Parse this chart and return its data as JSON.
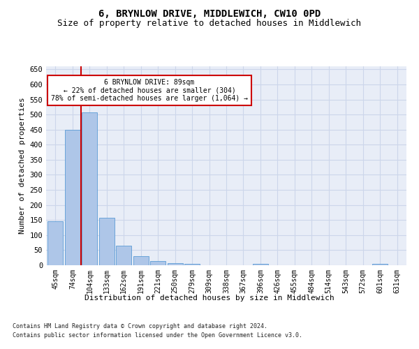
{
  "title": "6, BRYNLOW DRIVE, MIDDLEWICH, CW10 0PD",
  "subtitle": "Size of property relative to detached houses in Middlewich",
  "xlabel": "Distribution of detached houses by size in Middlewich",
  "ylabel": "Number of detached properties",
  "categories": [
    "45sqm",
    "74sqm",
    "104sqm",
    "133sqm",
    "162sqm",
    "191sqm",
    "221sqm",
    "250sqm",
    "279sqm",
    "309sqm",
    "338sqm",
    "367sqm",
    "396sqm",
    "426sqm",
    "455sqm",
    "484sqm",
    "514sqm",
    "543sqm",
    "572sqm",
    "601sqm",
    "631sqm"
  ],
  "values": [
    147,
    450,
    507,
    157,
    65,
    30,
    13,
    8,
    5,
    0,
    0,
    0,
    5,
    0,
    0,
    0,
    0,
    0,
    0,
    5,
    0
  ],
  "bar_color": "#aec6e8",
  "bar_edge_color": "#5b9bd5",
  "grid_color": "#ccd6ea",
  "background_color": "#e8edf7",
  "vline_color": "#cc0000",
  "vline_x_index": 1.5,
  "annotation_line1": "6 BRYNLOW DRIVE: 89sqm",
  "annotation_line2": "← 22% of detached houses are smaller (304)",
  "annotation_line3": "78% of semi-detached houses are larger (1,064) →",
  "annotation_box_facecolor": "#ffffff",
  "annotation_box_edgecolor": "#cc0000",
  "ylim": [
    0,
    660
  ],
  "yticks": [
    0,
    50,
    100,
    150,
    200,
    250,
    300,
    350,
    400,
    450,
    500,
    550,
    600,
    650
  ],
  "footer_line1": "Contains HM Land Registry data © Crown copyright and database right 2024.",
  "footer_line2": "Contains public sector information licensed under the Open Government Licence v3.0.",
  "title_fontsize": 10,
  "subtitle_fontsize": 9,
  "xlabel_fontsize": 8,
  "ylabel_fontsize": 8,
  "tick_fontsize": 7,
  "annotation_fontsize": 7,
  "footer_fontsize": 6
}
